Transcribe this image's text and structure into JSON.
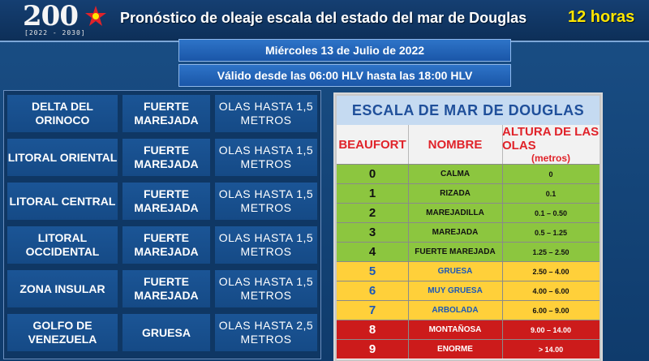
{
  "header": {
    "logo_text": "200",
    "logo_years": "[2022 - 2030]",
    "title": "Pronóstico de oleaje escala del  estado del mar de Douglas",
    "hours": "12 horas"
  },
  "date_bar": "Miércoles  13 de Julio de 2022",
  "valid_bar": "Válido desde las 06:00 HLV hasta las 18:00 HLV",
  "forecast": [
    {
      "zone": "DELTA DEL ORINOCO",
      "state": "FUERTE MAREJADA",
      "waves": "OLAS HASTA 1,5 METROS"
    },
    {
      "zone": "LITORAL ORIENTAL",
      "state": "FUERTE MAREJADA",
      "waves": "OLAS HASTA 1,5 METROS"
    },
    {
      "zone": "LITORAL CENTRAL",
      "state": "FUERTE MAREJADA",
      "waves": "OLAS HASTA 1,5 METROS"
    },
    {
      "zone": "LITORAL OCCIDENTAL",
      "state": "FUERTE MAREJADA",
      "waves": "OLAS HASTA 1,5 METROS"
    },
    {
      "zone": "ZONA INSULAR",
      "state": "FUERTE MAREJADA",
      "waves": "OLAS HASTA 1,5 METROS"
    },
    {
      "zone": "GOLFO DE VENEZUELA",
      "state": "GRUESA",
      "waves": "OLAS HASTA 2,5 METROS"
    }
  ],
  "scale": {
    "title": "ESCALA  DE MAR DE DOUGLAS",
    "headers": {
      "beaufort": "BEAUFORT",
      "name": "NOMBRE",
      "height": "ALTURA DE LAS OLAS",
      "height_unit": "(metros)"
    },
    "rows": [
      {
        "level": "0",
        "name": "CALMA",
        "height": "0",
        "color": "green"
      },
      {
        "level": "1",
        "name": "RIZADA",
        "height": "0.1",
        "color": "green"
      },
      {
        "level": "2",
        "name": "MAREJADILLA",
        "height": "0.1 – 0.50",
        "color": "green"
      },
      {
        "level": "3",
        "name": "MAREJADA",
        "height": "0.5 – 1.25",
        "color": "green"
      },
      {
        "level": "4",
        "name": "FUERTE MAREJADA",
        "height": "1.25 – 2.50",
        "color": "green"
      },
      {
        "level": "5",
        "name": "GRUESA",
        "height": "2.50 – 4.00",
        "color": "yellow"
      },
      {
        "level": "6",
        "name": "MUY GRUESA",
        "height": "4.00 – 6.00",
        "color": "yellow"
      },
      {
        "level": "7",
        "name": "ARBOLADA",
        "height": "6.00 – 9.00",
        "color": "yellow"
      },
      {
        "level": "8",
        "name": "MONTAÑOSA",
        "height": "9.00 – 14.00",
        "color": "red"
      },
      {
        "level": "9",
        "name": "ENORME",
        "height": "> 14.00",
        "color": "red"
      }
    ]
  },
  "colors": {
    "green": "#8cc63f",
    "yellow": "#ffd03a",
    "red": "#cc1b1b",
    "accent": "#ffe600"
  }
}
